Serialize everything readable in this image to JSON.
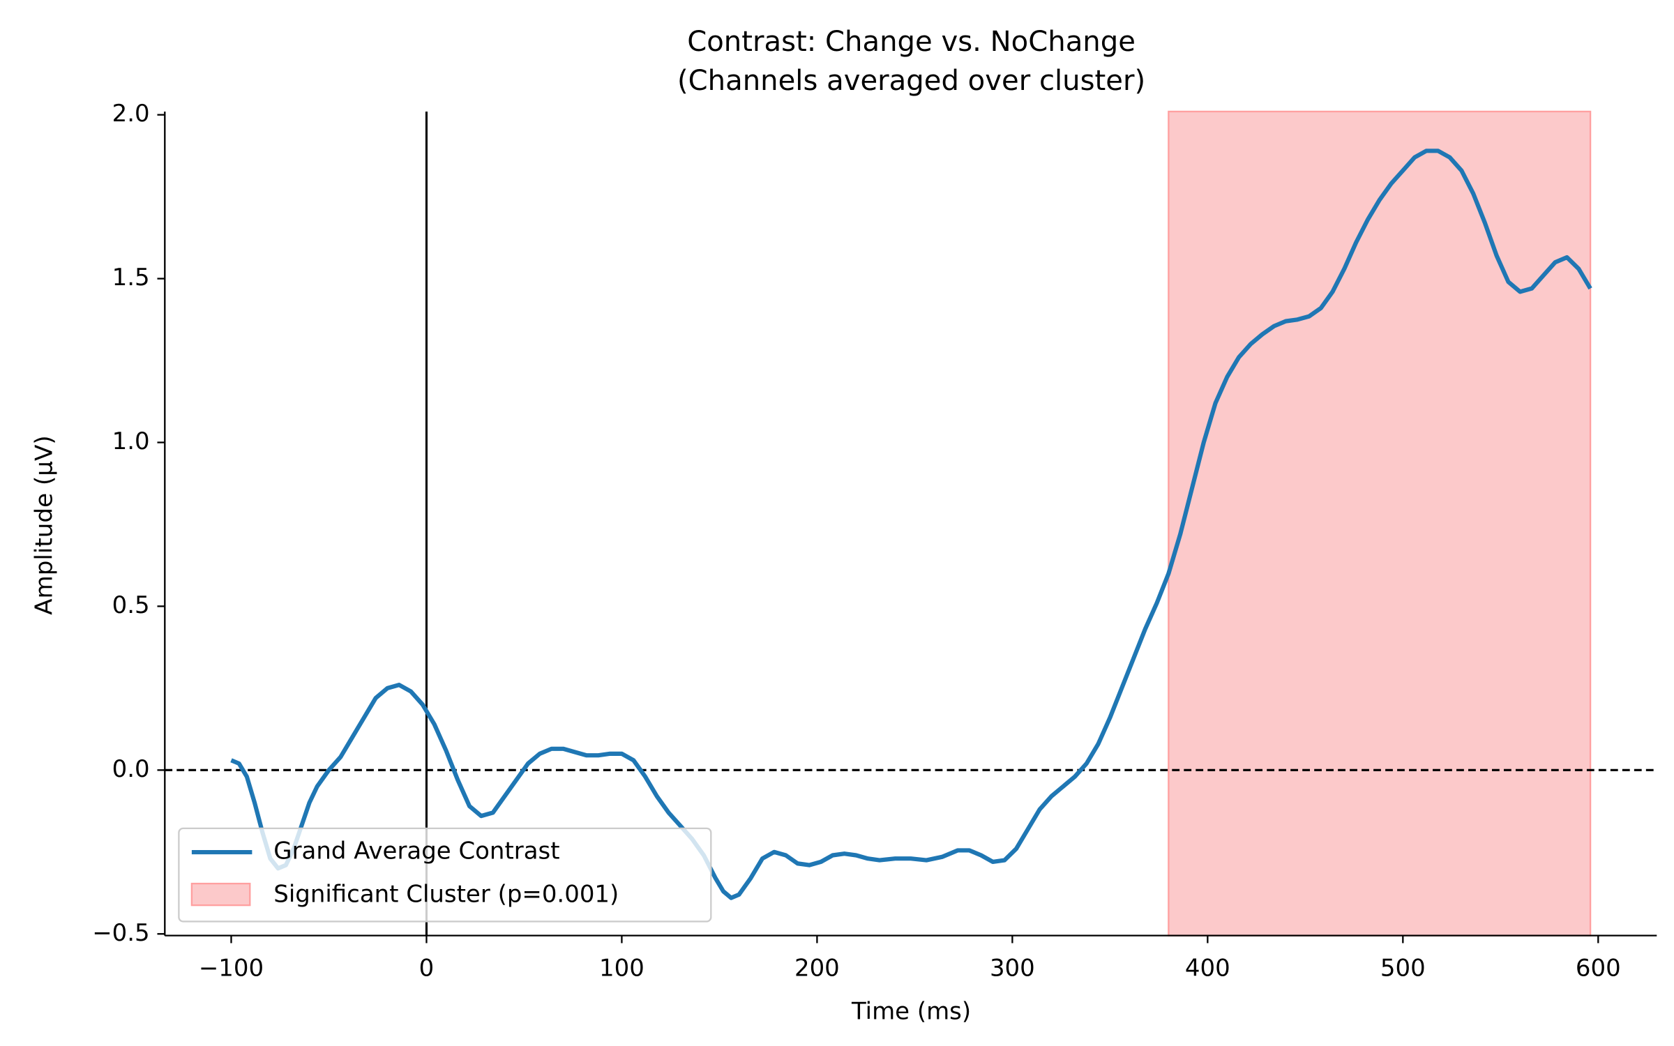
{
  "chart_data": {
    "type": "line",
    "title": "Contrast: Change vs. NoChange",
    "subtitle": "(Channels averaged over cluster)",
    "x_label": "Time (ms)",
    "y_label": "Amplitude (µV)",
    "x": [
      -100,
      -96,
      -92,
      -88,
      -84,
      -80,
      -76,
      -72,
      -68,
      -64,
      -60,
      -56,
      -50,
      -44,
      -38,
      -32,
      -26,
      -20,
      -14,
      -8,
      -2,
      4,
      10,
      16,
      22,
      28,
      34,
      40,
      46,
      52,
      58,
      64,
      70,
      76,
      82,
      88,
      94,
      100,
      106,
      112,
      118,
      124,
      130,
      136,
      142,
      148,
      152,
      156,
      160,
      166,
      172,
      178,
      184,
      190,
      196,
      202,
      208,
      214,
      220,
      226,
      232,
      240,
      248,
      256,
      264,
      272,
      278,
      284,
      290,
      296,
      302,
      308,
      314,
      320,
      326,
      332,
      338,
      344,
      350,
      356,
      362,
      368,
      374,
      380,
      386,
      392,
      398,
      404,
      410,
      416,
      422,
      428,
      434,
      440,
      446,
      452,
      458,
      464,
      470,
      476,
      482,
      488,
      494,
      500,
      506,
      512,
      518,
      524,
      530,
      536,
      542,
      548,
      554,
      560,
      566,
      572,
      578,
      584,
      590,
      596
    ],
    "series": [
      {
        "name": "Grand Average Contrast",
        "color": "#1f77b4",
        "values": [
          0.03,
          0.02,
          -0.02,
          -0.1,
          -0.19,
          -0.27,
          -0.3,
          -0.29,
          -0.24,
          -0.17,
          -0.1,
          -0.05,
          0.0,
          0.04,
          0.1,
          0.16,
          0.22,
          0.25,
          0.26,
          0.24,
          0.2,
          0.14,
          0.06,
          -0.03,
          -0.11,
          -0.14,
          -0.13,
          -0.08,
          -0.03,
          0.02,
          0.05,
          0.065,
          0.065,
          0.055,
          0.045,
          0.045,
          0.05,
          0.05,
          0.03,
          -0.02,
          -0.08,
          -0.13,
          -0.17,
          -0.21,
          -0.26,
          -0.33,
          -0.37,
          -0.39,
          -0.38,
          -0.33,
          -0.27,
          -0.25,
          -0.26,
          -0.285,
          -0.29,
          -0.28,
          -0.26,
          -0.255,
          -0.26,
          -0.27,
          -0.275,
          -0.27,
          -0.27,
          -0.275,
          -0.265,
          -0.245,
          -0.245,
          -0.26,
          -0.28,
          -0.275,
          -0.24,
          -0.18,
          -0.12,
          -0.08,
          -0.05,
          -0.02,
          0.02,
          0.08,
          0.16,
          0.25,
          0.34,
          0.43,
          0.51,
          0.6,
          0.72,
          0.86,
          1.0,
          1.12,
          1.2,
          1.26,
          1.3,
          1.33,
          1.355,
          1.37,
          1.375,
          1.385,
          1.41,
          1.46,
          1.53,
          1.61,
          1.68,
          1.74,
          1.79,
          1.83,
          1.87,
          1.89,
          1.89,
          1.87,
          1.83,
          1.76,
          1.67,
          1.57,
          1.49,
          1.46,
          1.47,
          1.51,
          1.55,
          1.565,
          1.53,
          1.47
        ]
      }
    ],
    "span": {
      "name": "Significant Cluster (p=0.001)",
      "xspan": [
        380,
        596
      ],
      "color": "#fcc9ca",
      "edge_color": "#ffa0a0"
    },
    "vline": 0,
    "hline": 0,
    "xlim": [
      -134,
      630
    ],
    "ylim": [
      -0.505,
      2.01
    ],
    "xticks": [
      {
        "value": -100,
        "label": "−100"
      },
      0,
      100,
      200,
      300,
      400,
      500,
      600
    ],
    "yticks": [
      {
        "value": -0.5,
        "label": "−0.5"
      },
      {
        "value": 0,
        "label": "0.0"
      },
      0.5,
      {
        "value": 1,
        "label": "1.0"
      },
      1.5,
      {
        "value": 2,
        "label": "2.0"
      }
    ],
    "legend": "lower left"
  }
}
